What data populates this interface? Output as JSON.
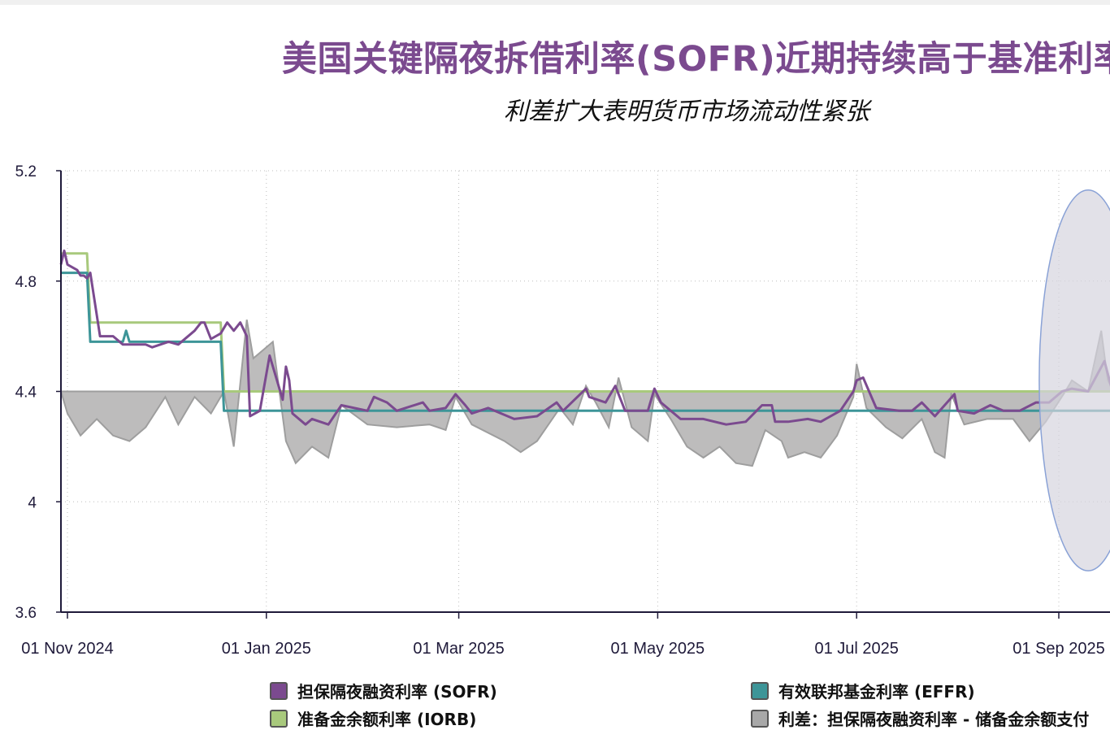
{
  "header": {
    "title": "美国关键隔夜拆借利率(SOFR)近期持续高于基准利率",
    "subtitle": "利差扩大表明货币市场流动性紧张"
  },
  "legend": [
    {
      "label": "担保隔夜融资利率 (SOFR)",
      "color": "#7b4a8f"
    },
    {
      "label": "有效联邦基金利率 (EFFR)",
      "color": "#3d9598"
    },
    {
      "label": "准备金余额利率 (IORB)",
      "color": "#a8c97c"
    },
    {
      "label": "利差：担保隔夜融资利率 - 储备金余额支付",
      "color": "#a8a8a8"
    }
  ],
  "chart_data": {
    "type": "line",
    "x_type": "date",
    "ylim": [
      3.6,
      5.2
    ],
    "yticks": [
      "5.2",
      "4.8",
      "4.4",
      "4",
      "3.6"
    ],
    "yticks_values": [
      5.2,
      4.8,
      4.4,
      4.0,
      3.6
    ],
    "xticks": [
      {
        "label": "01 Nov 2024",
        "date": "2024-11-01"
      },
      {
        "label": "01 Jan 2025",
        "date": "2025-01-01"
      },
      {
        "label": "01 Mar 2025",
        "date": "2025-03-01"
      },
      {
        "label": "01 May 2025",
        "date": "2025-05-01"
      },
      {
        "label": "01 Jul 2025",
        "date": "2025-07-01"
      },
      {
        "label": "01 Sep 2025",
        "date": "2025-09-01"
      }
    ],
    "grid": true,
    "highlight": {
      "shape": "ellipse",
      "from": "2025-08-26",
      "to": "2025-09-25",
      "ylim": [
        3.75,
        5.13
      ],
      "color": "#d6d4de"
    },
    "series": [
      {
        "name": "担保隔夜融资利率 (SOFR)",
        "color": "#7b4a8f",
        "points": [
          [
            "2024-10-30",
            4.86
          ],
          [
            "2024-10-31",
            4.91
          ],
          [
            "2024-11-01",
            4.86
          ],
          [
            "2024-11-04",
            4.84
          ],
          [
            "2024-11-05",
            4.82
          ],
          [
            "2024-11-06",
            4.82
          ],
          [
            "2024-11-07",
            4.81
          ],
          [
            "2024-11-08",
            4.83
          ],
          [
            "2024-11-11",
            4.6
          ],
          [
            "2024-11-15",
            4.6
          ],
          [
            "2024-11-18",
            4.57
          ],
          [
            "2024-11-25",
            4.57
          ],
          [
            "2024-11-27",
            4.56
          ],
          [
            "2024-12-02",
            4.58
          ],
          [
            "2024-12-05",
            4.57
          ],
          [
            "2024-12-10",
            4.62
          ],
          [
            "2024-12-12",
            4.65
          ],
          [
            "2024-12-13",
            4.65
          ],
          [
            "2024-12-15",
            4.59
          ],
          [
            "2024-12-18",
            4.61
          ],
          [
            "2024-12-20",
            4.65
          ],
          [
            "2024-12-22",
            4.62
          ],
          [
            "2024-12-24",
            4.65
          ],
          [
            "2024-12-26",
            4.6
          ],
          [
            "2024-12-27",
            4.31
          ],
          [
            "2024-12-30",
            4.33
          ],
          [
            "2025-01-02",
            4.53
          ],
          [
            "2025-01-06",
            4.37
          ],
          [
            "2025-01-07",
            4.49
          ],
          [
            "2025-01-08",
            4.44
          ],
          [
            "2025-01-09",
            4.32
          ],
          [
            "2025-01-13",
            4.28
          ],
          [
            "2025-01-15",
            4.3
          ],
          [
            "2025-01-20",
            4.28
          ],
          [
            "2025-01-24",
            4.35
          ],
          [
            "2025-02-01",
            4.33
          ],
          [
            "2025-02-03",
            4.38
          ],
          [
            "2025-02-07",
            4.36
          ],
          [
            "2025-02-10",
            4.33
          ],
          [
            "2025-02-18",
            4.36
          ],
          [
            "2025-02-20",
            4.33
          ],
          [
            "2025-02-25",
            4.34
          ],
          [
            "2025-02-28",
            4.39
          ],
          [
            "2025-03-03",
            4.35
          ],
          [
            "2025-03-05",
            4.32
          ],
          [
            "2025-03-10",
            4.34
          ],
          [
            "2025-03-18",
            4.3
          ],
          [
            "2025-03-25",
            4.31
          ],
          [
            "2025-03-31",
            4.36
          ],
          [
            "2025-04-02",
            4.33
          ],
          [
            "2025-04-09",
            4.41
          ],
          [
            "2025-04-10",
            4.38
          ],
          [
            "2025-04-15",
            4.36
          ],
          [
            "2025-04-18",
            4.42
          ],
          [
            "2025-04-21",
            4.33
          ],
          [
            "2025-04-28",
            4.33
          ],
          [
            "2025-04-30",
            4.41
          ],
          [
            "2025-05-02",
            4.36
          ],
          [
            "2025-05-08",
            4.3
          ],
          [
            "2025-05-15",
            4.3
          ],
          [
            "2025-05-22",
            4.28
          ],
          [
            "2025-05-28",
            4.29
          ],
          [
            "2025-06-02",
            4.35
          ],
          [
            "2025-06-05",
            4.35
          ],
          [
            "2025-06-06",
            4.29
          ],
          [
            "2025-06-10",
            4.29
          ],
          [
            "2025-06-16",
            4.3
          ],
          [
            "2025-06-20",
            4.29
          ],
          [
            "2025-06-26",
            4.33
          ],
          [
            "2025-06-30",
            4.4
          ],
          [
            "2025-07-01",
            4.44
          ],
          [
            "2025-07-03",
            4.45
          ],
          [
            "2025-07-07",
            4.34
          ],
          [
            "2025-07-14",
            4.33
          ],
          [
            "2025-07-18",
            4.33
          ],
          [
            "2025-07-21",
            4.36
          ],
          [
            "2025-07-25",
            4.31
          ],
          [
            "2025-07-31",
            4.39
          ],
          [
            "2025-08-01",
            4.33
          ],
          [
            "2025-08-06",
            4.32
          ],
          [
            "2025-08-11",
            4.35
          ],
          [
            "2025-08-15",
            4.33
          ],
          [
            "2025-08-20",
            4.33
          ],
          [
            "2025-08-25",
            4.36
          ],
          [
            "2025-08-29",
            4.36
          ],
          [
            "2025-09-02",
            4.4
          ],
          [
            "2025-09-05",
            4.41
          ],
          [
            "2025-09-10",
            4.4
          ],
          [
            "2025-09-15",
            4.51
          ],
          [
            "2025-09-17",
            4.42
          ],
          [
            "2025-09-18",
            4.4
          ]
        ]
      },
      {
        "name": "有效联邦基金利率 (EFFR)",
        "color": "#3d9598",
        "points": [
          [
            "2024-10-30",
            4.83
          ],
          [
            "2024-11-07",
            4.83
          ],
          [
            "2024-11-08",
            4.58
          ],
          [
            "2024-11-18",
            4.58
          ],
          [
            "2024-11-19",
            4.62
          ],
          [
            "2024-11-20",
            4.58
          ],
          [
            "2024-12-18",
            4.58
          ],
          [
            "2024-12-19",
            4.33
          ],
          [
            "2025-09-18",
            4.33
          ]
        ]
      },
      {
        "name": "准备金余额利率 (IORB)",
        "color": "#a8c97c",
        "points": [
          [
            "2024-10-30",
            4.9
          ],
          [
            "2024-11-07",
            4.9
          ],
          [
            "2024-11-08",
            4.65
          ],
          [
            "2024-12-18",
            4.65
          ],
          [
            "2024-12-19",
            4.4
          ],
          [
            "2025-09-18",
            4.4
          ]
        ]
      },
      {
        "name": "利差：担保隔夜融资利率 - 储备金余额支付",
        "color": "#a8a8a8",
        "baseline": 4.4,
        "points": [
          [
            "2024-10-30",
            4.4
          ],
          [
            "2024-11-01",
            4.32
          ],
          [
            "2024-11-05",
            4.24
          ],
          [
            "2024-11-10",
            4.3
          ],
          [
            "2024-11-15",
            4.24
          ],
          [
            "2024-11-20",
            4.22
          ],
          [
            "2024-11-25",
            4.27
          ],
          [
            "2024-12-01",
            4.38
          ],
          [
            "2024-12-05",
            4.28
          ],
          [
            "2024-12-10",
            4.38
          ],
          [
            "2024-12-15",
            4.32
          ],
          [
            "2024-12-19",
            4.4
          ],
          [
            "2024-12-22",
            4.2
          ],
          [
            "2024-12-26",
            4.66
          ],
          [
            "2024-12-28",
            4.52
          ],
          [
            "2025-01-03",
            4.58
          ],
          [
            "2025-01-07",
            4.22
          ],
          [
            "2025-01-10",
            4.14
          ],
          [
            "2025-01-15",
            4.2
          ],
          [
            "2025-01-20",
            4.16
          ],
          [
            "2025-01-24",
            4.35
          ],
          [
            "2025-02-01",
            4.28
          ],
          [
            "2025-02-10",
            4.27
          ],
          [
            "2025-02-20",
            4.28
          ],
          [
            "2025-02-25",
            4.26
          ],
          [
            "2025-02-28",
            4.38
          ],
          [
            "2025-03-05",
            4.28
          ],
          [
            "2025-03-15",
            4.22
          ],
          [
            "2025-03-20",
            4.18
          ],
          [
            "2025-03-25",
            4.22
          ],
          [
            "2025-04-01",
            4.34
          ],
          [
            "2025-04-05",
            4.28
          ],
          [
            "2025-04-09",
            4.42
          ],
          [
            "2025-04-12",
            4.36
          ],
          [
            "2025-04-16",
            4.27
          ],
          [
            "2025-04-19",
            4.45
          ],
          [
            "2025-04-23",
            4.27
          ],
          [
            "2025-04-28",
            4.22
          ],
          [
            "2025-04-30",
            4.39
          ],
          [
            "2025-05-05",
            4.3
          ],
          [
            "2025-05-10",
            4.2
          ],
          [
            "2025-05-15",
            4.16
          ],
          [
            "2025-05-20",
            4.2
          ],
          [
            "2025-05-25",
            4.14
          ],
          [
            "2025-05-30",
            4.13
          ],
          [
            "2025-06-03",
            4.26
          ],
          [
            "2025-06-08",
            4.22
          ],
          [
            "2025-06-10",
            4.16
          ],
          [
            "2025-06-15",
            4.18
          ],
          [
            "2025-06-20",
            4.16
          ],
          [
            "2025-06-25",
            4.24
          ],
          [
            "2025-06-30",
            4.38
          ],
          [
            "2025-07-01",
            4.5
          ],
          [
            "2025-07-04",
            4.34
          ],
          [
            "2025-07-10",
            4.27
          ],
          [
            "2025-07-15",
            4.23
          ],
          [
            "2025-07-21",
            4.3
          ],
          [
            "2025-07-25",
            4.18
          ],
          [
            "2025-07-28",
            4.16
          ],
          [
            "2025-07-30",
            4.39
          ],
          [
            "2025-08-03",
            4.28
          ],
          [
            "2025-08-10",
            4.3
          ],
          [
            "2025-08-18",
            4.3
          ],
          [
            "2025-08-23",
            4.22
          ],
          [
            "2025-08-28",
            4.29
          ],
          [
            "2025-09-03",
            4.4
          ],
          [
            "2025-09-05",
            4.44
          ],
          [
            "2025-09-10",
            4.4
          ],
          [
            "2025-09-14",
            4.62
          ],
          [
            "2025-09-16",
            4.44
          ],
          [
            "2025-09-18",
            4.4
          ]
        ]
      }
    ]
  }
}
